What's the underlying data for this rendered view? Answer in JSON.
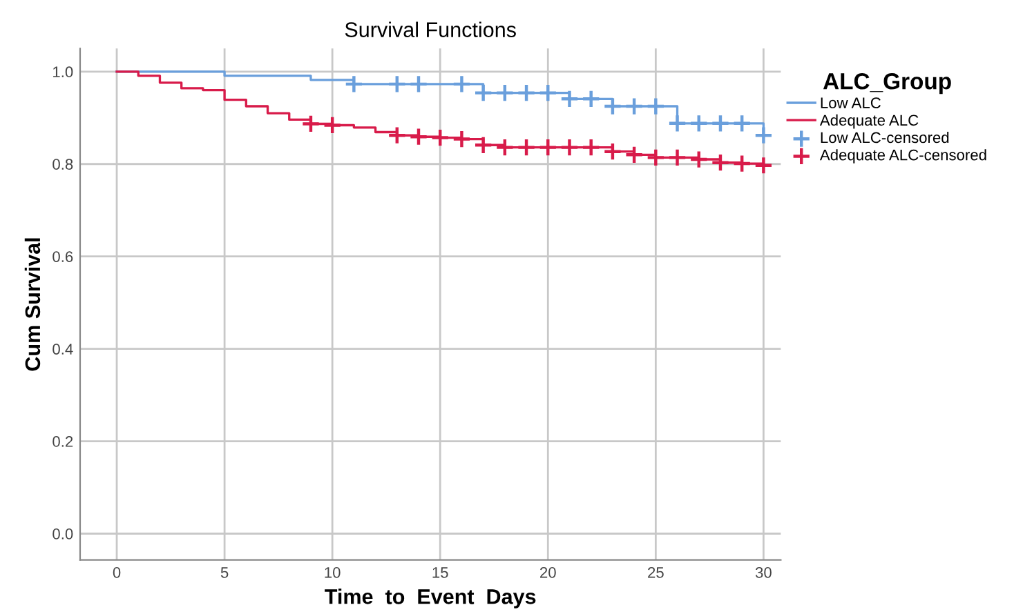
{
  "chart_data": {
    "type": "step",
    "title": "Survival Functions",
    "xlabel": "Time  to  Event  Days",
    "ylabel": "Cum Survival",
    "legend_title": "ALC_Group",
    "legend": "right",
    "grid": true,
    "xlim": [
      -1.7,
      30.8
    ],
    "xticks": [
      0,
      5,
      10,
      15,
      20,
      25,
      30
    ],
    "ylim": [
      -0.057,
      1.05
    ],
    "yticks": [
      {
        "value": 0,
        "label": "0.0"
      },
      {
        "value": 0.2,
        "label": "0.2"
      },
      {
        "value": 0.4,
        "label": "0.4"
      },
      {
        "value": 0.6,
        "label": "0.6"
      },
      {
        "value": 0.8,
        "label": "0.8"
      },
      {
        "value": 1,
        "label": "1.0"
      }
    ],
    "series": [
      {
        "name": "Low ALC",
        "color": "#6a9fdc",
        "marker": "none",
        "x": [
          0,
          5,
          9,
          11,
          17,
          21,
          23,
          26,
          30
        ],
        "values": [
          1.0,
          0.991,
          0.982,
          0.973,
          0.954,
          0.941,
          0.925,
          0.888,
          0.862
        ]
      },
      {
        "name": "Adequate ALC",
        "color": "#d81b4a",
        "marker": "none",
        "x": [
          0,
          1,
          2,
          3,
          4,
          5,
          6,
          7,
          8,
          9,
          10,
          11,
          12,
          13,
          14,
          15,
          16,
          17,
          18,
          19,
          20,
          21,
          22,
          23,
          24,
          25,
          26,
          27,
          28,
          29,
          30
        ],
        "values": [
          1.0,
          0.991,
          0.976,
          0.964,
          0.96,
          0.939,
          0.925,
          0.91,
          0.896,
          0.887,
          0.884,
          0.879,
          0.869,
          0.862,
          0.859,
          0.857,
          0.854,
          0.841,
          0.836,
          0.836,
          0.836,
          0.836,
          0.836,
          0.827,
          0.82,
          0.814,
          0.814,
          0.81,
          0.803,
          0.801,
          0.797
        ]
      },
      {
        "name": "Low ALC-censored",
        "type": "scatter",
        "color": "#6a9fdc",
        "marker": "cross",
        "x": [
          11,
          13,
          14,
          16,
          17,
          18,
          19,
          20,
          21,
          22,
          23,
          24,
          25,
          26,
          27,
          28,
          29,
          30
        ],
        "values": [
          0.973,
          0.973,
          0.973,
          0.973,
          0.954,
          0.954,
          0.954,
          0.954,
          0.941,
          0.941,
          0.925,
          0.925,
          0.925,
          0.888,
          0.888,
          0.888,
          0.888,
          0.862
        ]
      },
      {
        "name": "Adequate ALC-censored",
        "type": "scatter",
        "color": "#d81b4a",
        "marker": "cross",
        "x": [
          9,
          10,
          13,
          14,
          15,
          16,
          17,
          18,
          19,
          20,
          21,
          22,
          23,
          24,
          25,
          26,
          27,
          28,
          29,
          30
        ],
        "values": [
          0.887,
          0.884,
          0.862,
          0.859,
          0.857,
          0.854,
          0.841,
          0.836,
          0.836,
          0.836,
          0.836,
          0.836,
          0.827,
          0.82,
          0.814,
          0.814,
          0.81,
          0.803,
          0.801,
          0.797
        ]
      }
    ]
  }
}
